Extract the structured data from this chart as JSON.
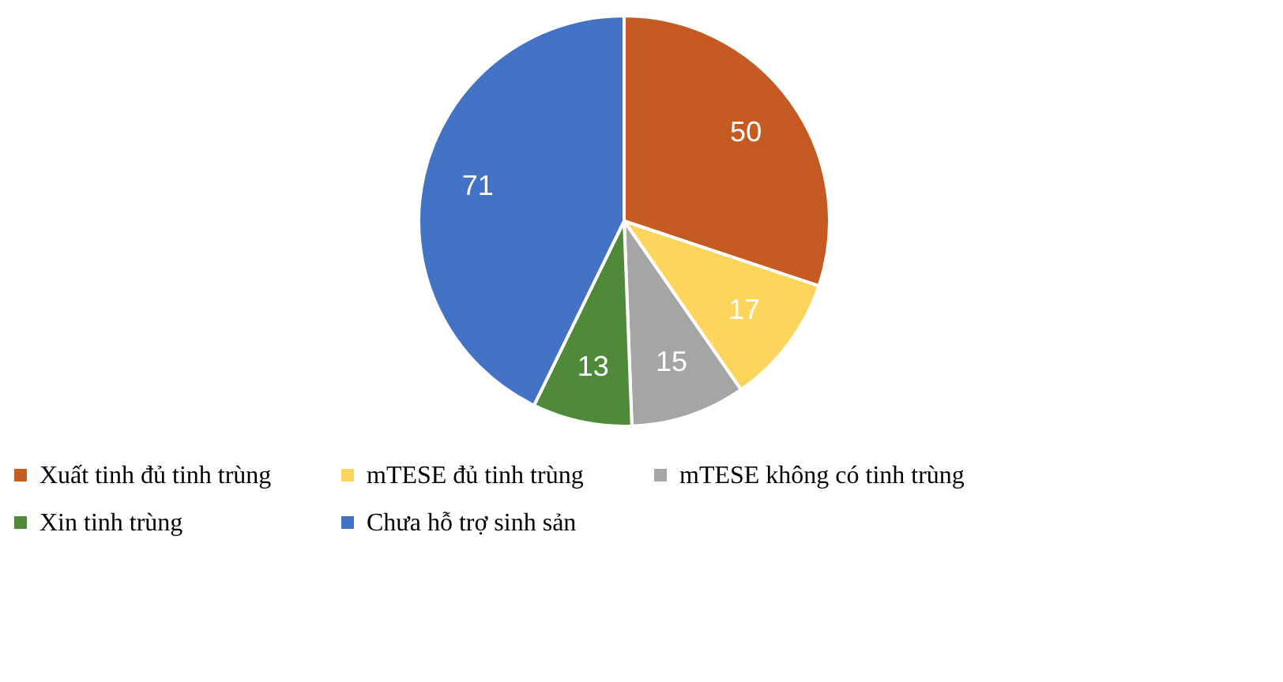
{
  "chart_data": {
    "type": "pie",
    "categories": [
      "Xuất tinh đủ tinh trùng",
      "mTESE đủ tinh trùng",
      "mTESE không có tinh trùng",
      "Xin tinh trùng",
      "Chưa hỗ trợ sinh sản"
    ],
    "values": [
      50,
      17,
      15,
      13,
      71
    ],
    "colors": [
      "#c55a22",
      "#fdd55c",
      "#a5a5a5",
      "#4e8a3a",
      "#4472c4"
    ],
    "data_labels": true,
    "legend": "bottom"
  }
}
